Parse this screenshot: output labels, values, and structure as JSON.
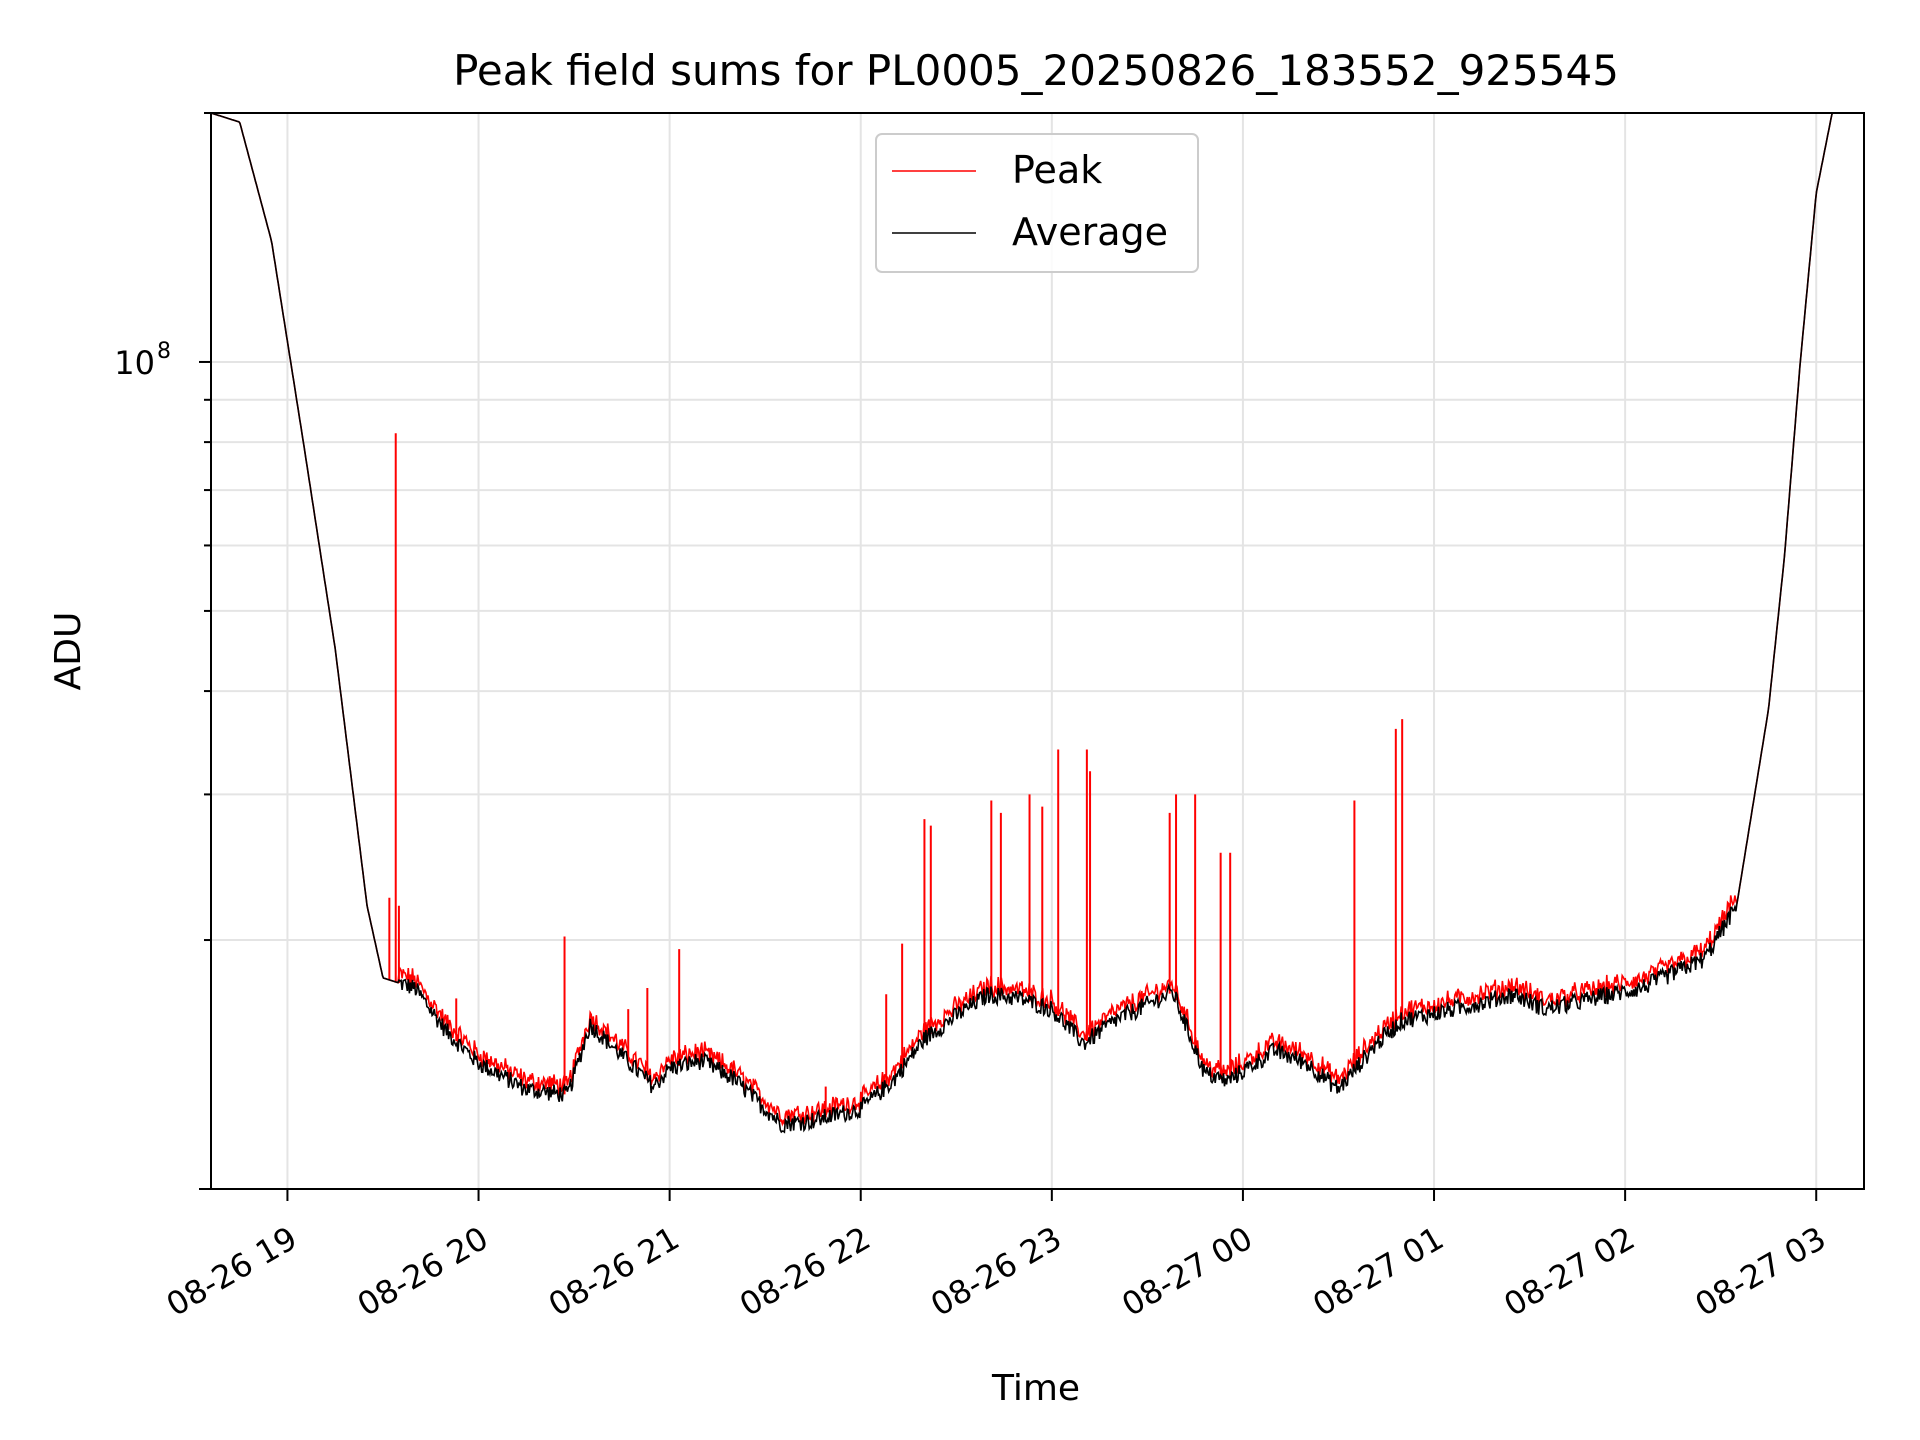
{
  "chart_data": {
    "type": "line",
    "title": "Peak field sums for PL0005_20250826_183552_925545",
    "xlabel": "Time",
    "ylabel": "ADU",
    "y_scale": "log",
    "ylim": [
      10000000,
      200000000
    ],
    "xlim": [
      "08-26 18:36",
      "08-27 03:15"
    ],
    "grid": true,
    "legend_position": "top-center",
    "x_ticks": [
      "08-26 19",
      "08-26 20",
      "08-26 21",
      "08-26 22",
      "08-26 23",
      "08-27 00",
      "08-27 01",
      "08-27 02",
      "08-27 03"
    ],
    "y_tick_labels": [
      {
        "value": 100000000,
        "label": "10",
        "exp": "8"
      }
    ],
    "series": [
      {
        "name": "Average",
        "color": "#000000",
        "x": [
          "08-26 18:36",
          "08-26 18:45",
          "08-26 18:55",
          "08-26 19:05",
          "08-26 19:15",
          "08-26 19:25",
          "08-26 19:30",
          "08-26 19:40",
          "08-26 19:50",
          "08-26 20:00",
          "08-26 20:15",
          "08-26 20:28",
          "08-26 20:35",
          "08-26 20:45",
          "08-26 20:55",
          "08-26 21:00",
          "08-26 21:10",
          "08-26 21:20",
          "08-26 21:35",
          "08-26 21:45",
          "08-26 22:00",
          "08-26 22:10",
          "08-26 22:20",
          "08-26 22:30",
          "08-26 22:40",
          "08-26 22:50",
          "08-26 23:00",
          "08-26 23:10",
          "08-26 23:20",
          "08-26 23:38",
          "08-26 23:48",
          "08-26 23:55",
          "08-27 00:10",
          "08-27 00:20",
          "08-27 00:30",
          "08-27 00:42",
          "08-27 00:50",
          "08-27 01:00",
          "08-27 01:15",
          "08-27 01:25",
          "08-27 01:35",
          "08-27 01:50",
          "08-27 02:05",
          "08-27 02:25",
          "08-27 02:35",
          "08-27 02:45",
          "08-27 02:50",
          "08-27 02:55",
          "08-27 03:00",
          "08-27 03:05",
          "08-27 03:15"
        ],
        "y": [
          200000000,
          195000000,
          140000000,
          80000000,
          45000000,
          22000000,
          18000000,
          17500000,
          15500000,
          14200000,
          13200000,
          13000000,
          15800000,
          14500000,
          13300000,
          14000000,
          14300000,
          13600000,
          12000000,
          12100000,
          12500000,
          13500000,
          15200000,
          16200000,
          17200000,
          17000000,
          16500000,
          15000000,
          16000000,
          17300000,
          13800000,
          13500000,
          14700000,
          14200000,
          13200000,
          15000000,
          16000000,
          16300000,
          16800000,
          17200000,
          16500000,
          17000000,
          17500000,
          19000000,
          22000000,
          38000000,
          58000000,
          100000000,
          160000000,
          200000000,
          200000000
        ]
      },
      {
        "name": "Peak",
        "color": "#ff0000",
        "spikes": [
          {
            "x": "08-26 19:32",
            "y": 22500000
          },
          {
            "x": "08-26 19:34",
            "y": 82000000
          },
          {
            "x": "08-26 19:35",
            "y": 22000000
          },
          {
            "x": "08-26 19:53",
            "y": 17000000
          },
          {
            "x": "08-26 20:27",
            "y": 20200000
          },
          {
            "x": "08-26 20:47",
            "y": 16500000
          },
          {
            "x": "08-26 20:53",
            "y": 17500000
          },
          {
            "x": "08-26 21:03",
            "y": 19500000
          },
          {
            "x": "08-26 21:49",
            "y": 13300000
          },
          {
            "x": "08-26 22:08",
            "y": 17200000
          },
          {
            "x": "08-26 22:13",
            "y": 19800000
          },
          {
            "x": "08-26 22:20",
            "y": 28000000
          },
          {
            "x": "08-26 22:22",
            "y": 27500000
          },
          {
            "x": "08-26 22:41",
            "y": 29500000
          },
          {
            "x": "08-26 22:44",
            "y": 28500000
          },
          {
            "x": "08-26 22:53",
            "y": 30000000
          },
          {
            "x": "08-26 22:57",
            "y": 29000000
          },
          {
            "x": "08-26 23:02",
            "y": 34000000
          },
          {
            "x": "08-26 23:11",
            "y": 34000000
          },
          {
            "x": "08-26 23:12",
            "y": 32000000
          },
          {
            "x": "08-26 23:37",
            "y": 28500000
          },
          {
            "x": "08-26 23:39",
            "y": 30000000
          },
          {
            "x": "08-26 23:45",
            "y": 30000000
          },
          {
            "x": "08-26 23:53",
            "y": 25500000
          },
          {
            "x": "08-26 23:56",
            "y": 25500000
          },
          {
            "x": "08-27 00:35",
            "y": 29500000
          },
          {
            "x": "08-27 00:48",
            "y": 36000000
          },
          {
            "x": "08-27 00:50",
            "y": 37000000
          }
        ]
      }
    ]
  }
}
